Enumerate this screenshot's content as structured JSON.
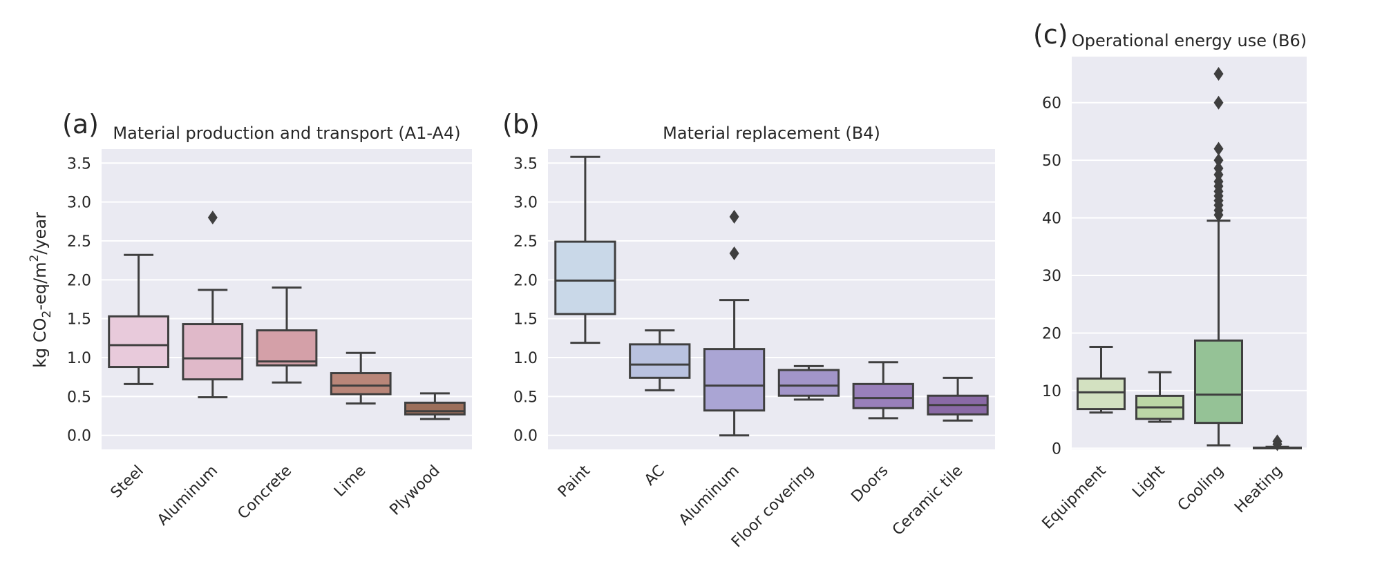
{
  "chart_data": [
    {
      "type": "box",
      "panel_label": "(a)",
      "title": "Material production and transport (A1-A4)",
      "ylabel_parts": {
        "pre": "kg CO",
        "sub": "2",
        "mid": "-eq/m",
        "sup": "2",
        "post": "/year"
      },
      "ylim": [
        -0.18,
        3.68
      ],
      "yticks": [
        0.0,
        0.5,
        1.0,
        1.5,
        2.0,
        2.5,
        3.0,
        3.5
      ],
      "ytick_labels": [
        "0.0",
        "0.5",
        "1.0",
        "1.5",
        "2.0",
        "2.5",
        "3.0",
        "3.5"
      ],
      "categories": [
        "Steel",
        "Aluminum",
        "Concrete",
        "Lime",
        "Plywood"
      ],
      "colors": [
        "#e8cadb",
        "#e0b9c9",
        "#d4a0a8",
        "#b98679",
        "#9c6f5b"
      ],
      "boxes": [
        {
          "whislo": 0.66,
          "q1": 0.88,
          "med": 1.16,
          "q3": 1.53,
          "whishi": 2.32,
          "fliers": []
        },
        {
          "whislo": 0.49,
          "q1": 0.72,
          "med": 0.99,
          "q3": 1.43,
          "whishi": 1.87,
          "fliers": [
            2.8
          ]
        },
        {
          "whislo": 0.68,
          "q1": 0.9,
          "med": 0.95,
          "q3": 1.35,
          "whishi": 1.9,
          "fliers": []
        },
        {
          "whislo": 0.41,
          "q1": 0.53,
          "med": 0.64,
          "q3": 0.8,
          "whishi": 1.06,
          "fliers": []
        },
        {
          "whislo": 0.21,
          "q1": 0.27,
          "med": 0.31,
          "q3": 0.42,
          "whishi": 0.54,
          "fliers": []
        }
      ]
    },
    {
      "type": "box",
      "panel_label": "(b)",
      "title": "Material replacement (B4)",
      "ylim": [
        -0.18,
        3.68
      ],
      "yticks": [
        0.0,
        0.5,
        1.0,
        1.5,
        2.0,
        2.5,
        3.0,
        3.5
      ],
      "ytick_labels": [
        "0.0",
        "0.5",
        "1.0",
        "1.5",
        "2.0",
        "2.5",
        "3.0",
        "3.5"
      ],
      "categories": [
        "Paint",
        "AC",
        "Aluminum",
        "Floor covering",
        "Doors",
        "Ceramic tile"
      ],
      "colors": [
        "#c9d8e8",
        "#b9c2e0",
        "#aaa5d4",
        "#a295c9",
        "#9980ba",
        "#8a6aa6"
      ],
      "boxes": [
        {
          "whislo": 1.19,
          "q1": 1.56,
          "med": 1.99,
          "q3": 2.49,
          "whishi": 3.58,
          "fliers": []
        },
        {
          "whislo": 0.58,
          "q1": 0.74,
          "med": 0.91,
          "q3": 1.17,
          "whishi": 1.35,
          "fliers": []
        },
        {
          "whislo": 0.0,
          "q1": 0.32,
          "med": 0.64,
          "q3": 1.11,
          "whishi": 1.74,
          "fliers": [
            2.34,
            2.81
          ]
        },
        {
          "whislo": 0.46,
          "q1": 0.51,
          "med": 0.64,
          "q3": 0.84,
          "whishi": 0.89,
          "fliers": []
        },
        {
          "whislo": 0.22,
          "q1": 0.35,
          "med": 0.48,
          "q3": 0.66,
          "whishi": 0.94,
          "fliers": []
        },
        {
          "whislo": 0.19,
          "q1": 0.27,
          "med": 0.39,
          "q3": 0.51,
          "whishi": 0.74,
          "fliers": []
        }
      ]
    },
    {
      "type": "box",
      "panel_label": "(c)",
      "title": "Operational energy use (B6)",
      "ylim": [
        -0.2,
        68.0
      ],
      "yticks": [
        0,
        10,
        20,
        30,
        40,
        50,
        60
      ],
      "ytick_labels": [
        "0",
        "10",
        "20",
        "30",
        "40",
        "50",
        "60"
      ],
      "categories": [
        "Equipment",
        "Light",
        "Cooling",
        "Heating"
      ],
      "colors": [
        "#d3e1c1",
        "#bcd7a6",
        "#95c296",
        "#6fa27f"
      ],
      "boxes": [
        {
          "whislo": 6.2,
          "q1": 6.8,
          "med": 9.7,
          "q3": 12.1,
          "whishi": 17.6,
          "fliers": []
        },
        {
          "whislo": 4.6,
          "q1": 5.1,
          "med": 7.1,
          "q3": 9.1,
          "whishi": 13.2,
          "fliers": []
        },
        {
          "whislo": 0.5,
          "q1": 4.4,
          "med": 9.3,
          "q3": 18.7,
          "whishi": 39.5,
          "fliers": [
            40.5,
            41.3,
            42.2,
            43.0,
            43.8,
            44.6,
            45.5,
            46.3,
            47.5,
            48.6,
            50.0,
            52.0,
            60.0,
            65.0
          ]
        },
        {
          "whislo": 0.0,
          "q1": 0.02,
          "med": 0.05,
          "q3": 0.1,
          "whishi": 0.25,
          "fliers": [
            0.7,
            1.2
          ]
        }
      ]
    }
  ]
}
